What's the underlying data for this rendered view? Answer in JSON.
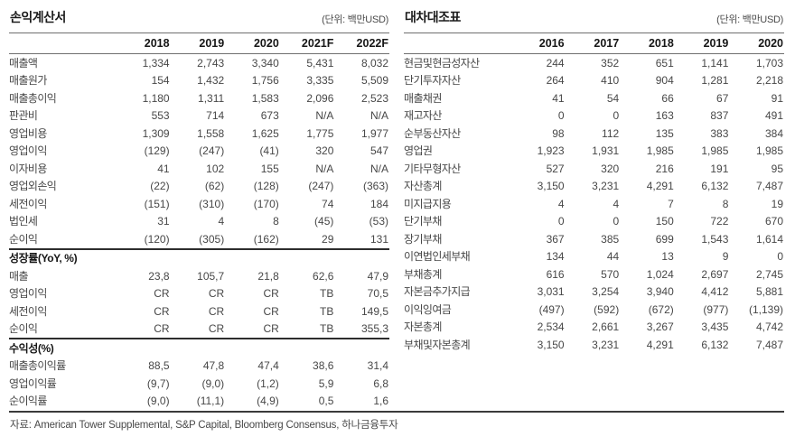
{
  "income_statement": {
    "title": "손익계산서",
    "unit": "(단위: 백만USD)",
    "columns": [
      "2018",
      "2019",
      "2020",
      "2021F",
      "2022F"
    ],
    "rows": [
      {
        "label": "매출액",
        "values": [
          "1,334",
          "2,743",
          "3,340",
          "5,431",
          "8,032"
        ]
      },
      {
        "label": "매출원가",
        "values": [
          "154",
          "1,432",
          "1,756",
          "3,335",
          "5,509"
        ]
      },
      {
        "label": "매출총이익",
        "values": [
          "1,180",
          "1,311",
          "1,583",
          "2,096",
          "2,523"
        ]
      },
      {
        "label": "판관비",
        "values": [
          "553",
          "714",
          "673",
          "N/A",
          "N/A"
        ]
      },
      {
        "label": "영업비용",
        "values": [
          "1,309",
          "1,558",
          "1,625",
          "1,775",
          "1,977"
        ]
      },
      {
        "label": "영업이익",
        "values": [
          "(129)",
          "(247)",
          "(41)",
          "320",
          "547"
        ]
      },
      {
        "label": "이자비용",
        "values": [
          "41",
          "102",
          "155",
          "N/A",
          "N/A"
        ]
      },
      {
        "label": "영업외손익",
        "values": [
          "(22)",
          "(62)",
          "(128)",
          "(247)",
          "(363)"
        ]
      },
      {
        "label": "세전이익",
        "values": [
          "(151)",
          "(310)",
          "(170)",
          "74",
          "184"
        ]
      },
      {
        "label": "법인세",
        "values": [
          "31",
          "4",
          "8",
          "(45)",
          "(53)"
        ]
      },
      {
        "label": "순이익",
        "values": [
          "(120)",
          "(305)",
          "(162)",
          "29",
          "131"
        ]
      },
      {
        "label": "성장률(YoY, %)",
        "section": true,
        "values": [
          "",
          "",
          "",
          "",
          ""
        ]
      },
      {
        "label": "매출",
        "values": [
          "23,8",
          "105,7",
          "21,8",
          "62,6",
          "47,9"
        ]
      },
      {
        "label": "영업이익",
        "values": [
          "CR",
          "CR",
          "CR",
          "TB",
          "70,5"
        ]
      },
      {
        "label": "세전이익",
        "values": [
          "CR",
          "CR",
          "CR",
          "TB",
          "149,5"
        ]
      },
      {
        "label": "순이익",
        "values": [
          "CR",
          "CR",
          "CR",
          "TB",
          "355,3"
        ]
      },
      {
        "label": "수익성(%)",
        "section": true,
        "values": [
          "",
          "",
          "",
          "",
          ""
        ]
      },
      {
        "label": "매출총이익률",
        "values": [
          "88,5",
          "47,8",
          "47,4",
          "38,6",
          "31,4"
        ]
      },
      {
        "label": "영업이익률",
        "values": [
          "(9,7)",
          "(9,0)",
          "(1,2)",
          "5,9",
          "6,8"
        ]
      },
      {
        "label": "순이익률",
        "values": [
          "(9,0)",
          "(11,1)",
          "(4,9)",
          "0,5",
          "1,6"
        ]
      }
    ]
  },
  "balance_sheet": {
    "title": "대차대조표",
    "unit": "(단위: 백만USD)",
    "columns": [
      "2016",
      "2017",
      "2018",
      "2019",
      "2020"
    ],
    "rows": [
      {
        "label": "현금및현금성자산",
        "values": [
          "244",
          "352",
          "651",
          "1,141",
          "1,703"
        ]
      },
      {
        "label": "단기투자자산",
        "values": [
          "264",
          "410",
          "904",
          "1,281",
          "2,218"
        ]
      },
      {
        "label": "매출채권",
        "values": [
          "41",
          "54",
          "66",
          "67",
          "91"
        ]
      },
      {
        "label": "재고자산",
        "values": [
          "0",
          "0",
          "163",
          "837",
          "491"
        ]
      },
      {
        "label": "순부동산자산",
        "values": [
          "98",
          "112",
          "135",
          "383",
          "384"
        ]
      },
      {
        "label": "영업권",
        "values": [
          "1,923",
          "1,931",
          "1,985",
          "1,985",
          "1,985"
        ]
      },
      {
        "label": "기타무형자산",
        "values": [
          "527",
          "320",
          "216",
          "191",
          "95"
        ]
      },
      {
        "label": "자산총계",
        "values": [
          "3,150",
          "3,231",
          "4,291",
          "6,132",
          "7,487"
        ]
      },
      {
        "label": "미지급지용",
        "values": [
          "4",
          "4",
          "7",
          "8",
          "19"
        ]
      },
      {
        "label": "단기부채",
        "values": [
          "0",
          "0",
          "150",
          "722",
          "670"
        ]
      },
      {
        "label": "장기부채",
        "values": [
          "367",
          "385",
          "699",
          "1,543",
          "1,614"
        ]
      },
      {
        "label": "이연법인세부채",
        "values": [
          "134",
          "44",
          "13",
          "9",
          "0"
        ]
      },
      {
        "label": "부채총계",
        "values": [
          "616",
          "570",
          "1,024",
          "2,697",
          "2,745"
        ]
      },
      {
        "label": "자본금추가지급",
        "values": [
          "3,031",
          "3,254",
          "3,940",
          "4,412",
          "5,881"
        ]
      },
      {
        "label": "이익잉여금",
        "values": [
          "(497)",
          "(592)",
          "(672)",
          "(977)",
          "(1,139)"
        ]
      },
      {
        "label": "자본총계",
        "values": [
          "2,534",
          "2,661",
          "3,267",
          "3,435",
          "4,742"
        ]
      },
      {
        "label": "부채및자본총계",
        "values": [
          "3,150",
          "3,231",
          "4,291",
          "6,132",
          "7,487"
        ]
      }
    ]
  },
  "footer": {
    "source": "자료: American Tower Supplemental, S&P Capital, Bloomberg Consensus, 하나금융투자"
  }
}
